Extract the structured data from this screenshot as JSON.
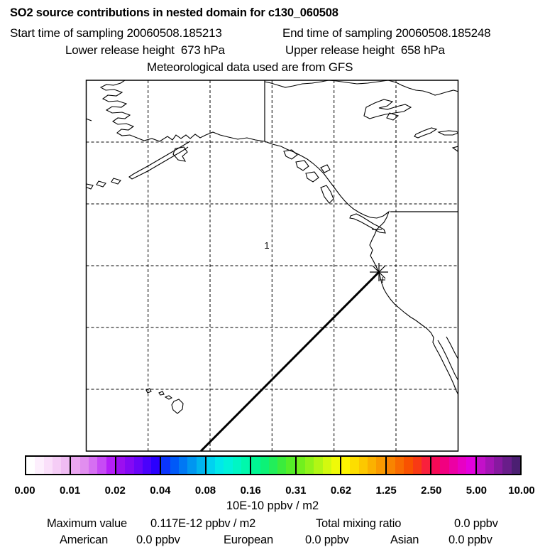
{
  "header": {
    "title": "SO2 source contributions in nested domain for c130_060508",
    "start_time": "Start time of sampling 20060508.185213",
    "end_time": "End time of sampling 20060508.185248",
    "lower_release": "Lower release height  673 hPa",
    "upper_release": "Upper release height  658 hPa",
    "met_source": "Meteorological data used are from GFS"
  },
  "map": {
    "point_label": "1"
  },
  "colorbar": {
    "tick_labels": [
      "0.00",
      "0.01",
      "0.02",
      "0.04",
      "0.08",
      "0.16",
      "0.31",
      "0.62",
      "1.25",
      "2.50",
      "5.00",
      "10.00"
    ],
    "unit_label": "10E-10 ppbv / m2",
    "segments": [
      [
        "#ffffff",
        "#fdeffd",
        "#fadffa",
        "#f5cdf6",
        "#f0bcf3"
      ],
      [
        "#eaa6f0",
        "#e18eef",
        "#d66ff2",
        "#c74af5",
        "#b51ef8"
      ],
      [
        "#9b0ff0",
        "#8409f4",
        "#6a05f8",
        "#4a02fc",
        "#2a00fe"
      ],
      [
        "#0b35fc",
        "#0059f8",
        "#0078f4",
        "#0096f0",
        "#00b4ee"
      ],
      [
        "#00d2f0",
        "#00e8ea",
        "#00f2da",
        "#00f6c4",
        "#00f8ac"
      ],
      [
        "#00f693",
        "#0cf277",
        "#22ee5a",
        "#3bec3c",
        "#55ee28"
      ],
      [
        "#71f01e",
        "#90f31a",
        "#b2f615",
        "#d3f90f",
        "#f0fa08"
      ],
      [
        "#fdf400",
        "#fdde00",
        "#fcc800",
        "#fbb100",
        "#fa9a00"
      ],
      [
        "#f98400",
        "#f96b00",
        "#f95200",
        "#f93a14",
        "#f9203c"
      ],
      [
        "#f60a56",
        "#f10080",
        "#ec00a4",
        "#e800c4",
        "#e300de"
      ],
      [
        "#c310c9",
        "#a515b5",
        "#8719a0",
        "#691d8a",
        "#4b1f72"
      ]
    ]
  },
  "stats": {
    "max_label": "Maximum value",
    "max_value": "0.117E-12 ppbv / m2",
    "total_label": "Total mixing ratio",
    "total_value": "0.0 ppbv",
    "regions": [
      {
        "name": "American",
        "value": "0.0 ppbv"
      },
      {
        "name": "European",
        "value": "0.0 ppbv"
      },
      {
        "name": "Asian",
        "value": "0.0 ppbv"
      }
    ]
  },
  "chart_data": {
    "type": "heatmap",
    "title": "SO2 source contributions in nested domain for c130_060508",
    "subtitle": [
      "Start time of sampling 20060508.185213",
      "End time of sampling 20060508.185248",
      "Lower release height 673 hPa",
      "Upper release height 658 hPa",
      "Meteorological data used are from GFS"
    ],
    "colorbar_levels": [
      0.0,
      0.01,
      0.02,
      0.04,
      0.08,
      0.16,
      0.31,
      0.62,
      1.25,
      2.5,
      5.0,
      10.0
    ],
    "colorbar_units": "10E-10 ppbv / m2",
    "max_value_label": "0.117E-12 ppbv / m2",
    "total_mixing_ratio_ppbv": 0.0,
    "source_contributions_ppbv": {
      "American": 0.0,
      "European": 0.0,
      "Asian": 0.0
    },
    "sampling": {
      "start": "20060508.185213",
      "end": "20060508.185248"
    },
    "release_heights_hPa": {
      "lower": 673,
      "upper": 658
    },
    "meteorology": "GFS",
    "map_features": [
      "coastlines of Alaska, west coast of North America, Hawaii, Arctic islands",
      "dashed lat-lon grid 5x5 interior lines",
      "US-Canada and Alaska-Yukon political borders",
      "straight flight-track line ending at asterisk release marker on California coast",
      "grid cell label 1 near domain center"
    ],
    "grid": true,
    "legend_position": "bottom"
  }
}
